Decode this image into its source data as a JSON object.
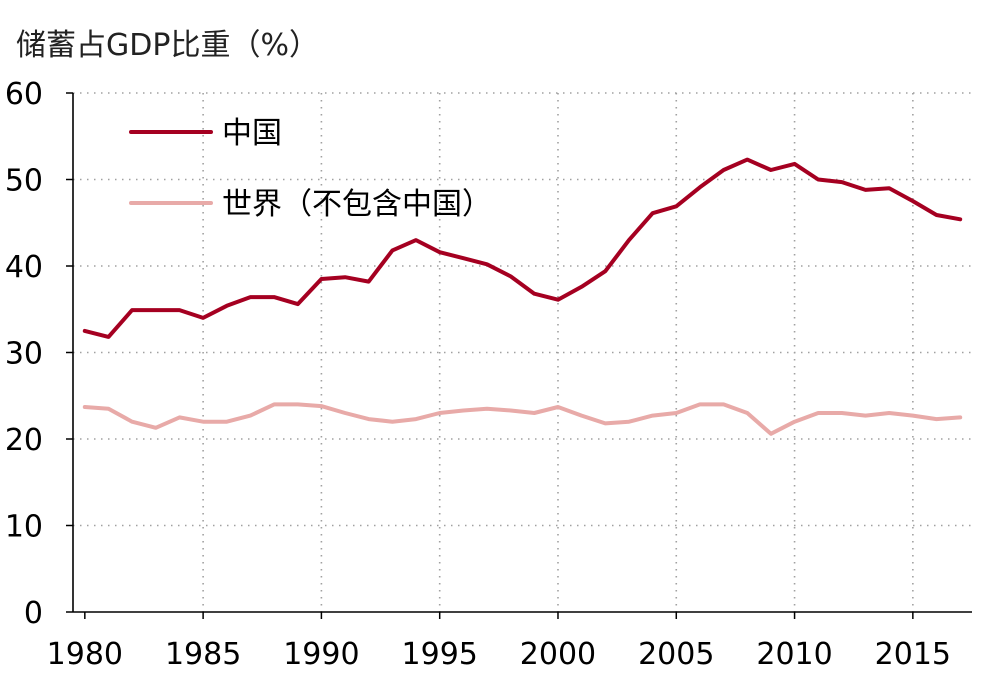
{
  "chart_data": {
    "type": "line",
    "title": "储蓄占GDP比重（%）",
    "xlabel": "",
    "ylabel": "",
    "xlim": [
      1980,
      2017.5
    ],
    "ylim": [
      0,
      60
    ],
    "x_ticks": [
      "1980",
      "1985",
      "1990",
      "1995",
      "2000",
      "2005",
      "2010",
      "2015"
    ],
    "y_ticks": [
      "0",
      "10",
      "20",
      "30",
      "40",
      "50",
      "60"
    ],
    "grid": true,
    "legend_position": "top-left",
    "x": [
      1980,
      1981,
      1982,
      1983,
      1984,
      1985,
      1986,
      1987,
      1988,
      1989,
      1990,
      1991,
      1992,
      1993,
      1994,
      1995,
      1996,
      1997,
      1998,
      1999,
      2000,
      2001,
      2002,
      2003,
      2004,
      2005,
      2006,
      2007,
      2008,
      2009,
      2010,
      2011,
      2012,
      2013,
      2014,
      2015,
      2016,
      2017
    ],
    "series": [
      {
        "name": "中国",
        "color": "#a50021",
        "values": [
          32.5,
          31.8,
          34.9,
          34.9,
          34.9,
          34.0,
          35.4,
          36.4,
          36.4,
          35.6,
          38.5,
          38.7,
          38.2,
          41.8,
          43.0,
          41.6,
          40.9,
          40.2,
          38.8,
          36.8,
          36.1,
          37.6,
          39.4,
          43.0,
          46.1,
          46.9,
          49.1,
          51.1,
          52.3,
          51.1,
          51.8,
          50.0,
          49.7,
          48.8,
          49.0,
          47.5,
          45.9,
          45.4
        ]
      },
      {
        "name": "世界（不包含中国）",
        "color": "#e8aaa8",
        "values": [
          23.7,
          23.5,
          22.0,
          21.3,
          22.5,
          22.0,
          22.0,
          22.7,
          24.0,
          24.0,
          23.8,
          23.0,
          22.3,
          22.0,
          22.3,
          23.0,
          23.3,
          23.5,
          23.3,
          23.0,
          23.7,
          22.7,
          21.8,
          22.0,
          22.7,
          23.0,
          24.0,
          24.0,
          23.0,
          20.6,
          22.0,
          23.0,
          23.0,
          22.7,
          23.0,
          22.7,
          22.3,
          22.5
        ]
      }
    ]
  }
}
